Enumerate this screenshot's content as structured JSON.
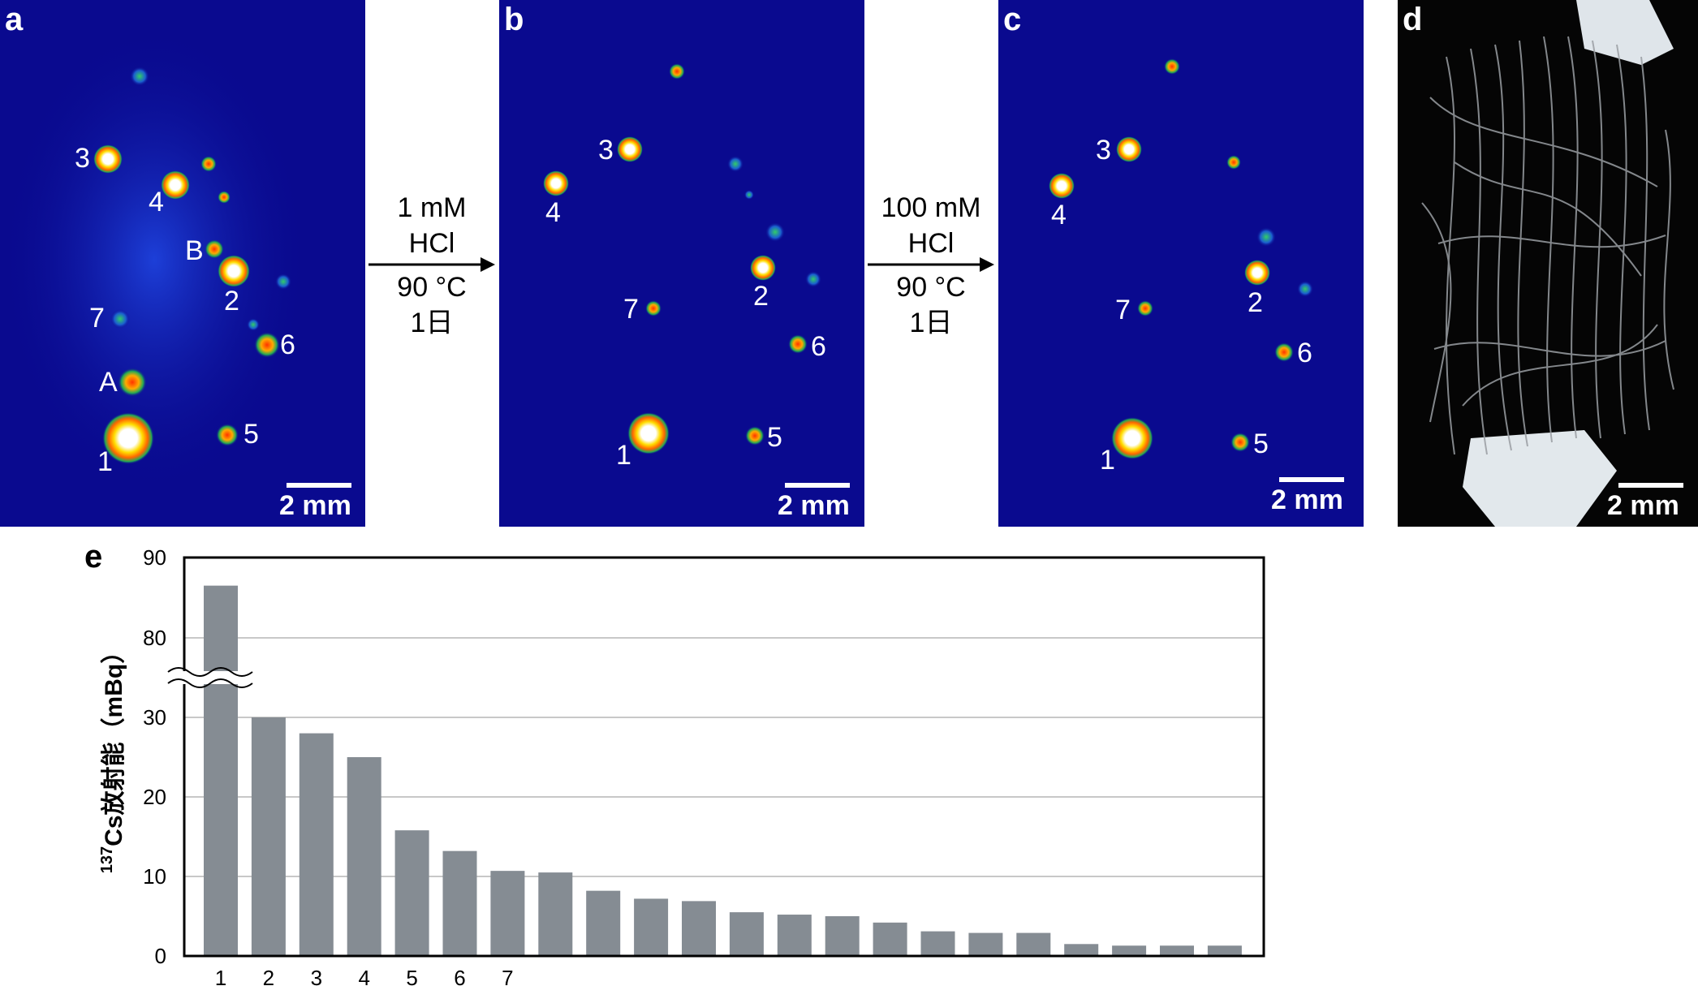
{
  "panels": {
    "a": {
      "letter": "a",
      "scale": "2 mm",
      "spots": [
        {
          "label": "3"
        },
        {
          "label": "4"
        },
        {
          "label": "B"
        },
        {
          "label": "2"
        },
        {
          "label": "7"
        },
        {
          "label": "6"
        },
        {
          "label": "A"
        },
        {
          "label": "1"
        },
        {
          "label": "5"
        }
      ]
    },
    "b": {
      "letter": "b",
      "scale": "2 mm",
      "spots": [
        {
          "label": "3"
        },
        {
          "label": "4"
        },
        {
          "label": "2"
        },
        {
          "label": "7"
        },
        {
          "label": "6"
        },
        {
          "label": "1"
        },
        {
          "label": "5"
        }
      ]
    },
    "c": {
      "letter": "c",
      "scale": "2 mm",
      "spots": [
        {
          "label": "3"
        },
        {
          "label": "4"
        },
        {
          "label": "2"
        },
        {
          "label": "7"
        },
        {
          "label": "6"
        },
        {
          "label": "1"
        },
        {
          "label": "5"
        }
      ]
    },
    "d": {
      "letter": "d",
      "scale": "2 mm"
    }
  },
  "treatments": [
    {
      "line1": "1 mM",
      "line2": "HCl",
      "line3": "90 °C",
      "line4": "1日"
    },
    {
      "line1": "100 mM",
      "line2": "HCl",
      "line3": "90 °C",
      "line4": "1日"
    }
  ],
  "colors": {
    "background_blue": "#0a0a8f",
    "bar": "#858c93",
    "grid": "#c8c8c8"
  },
  "chart_data": {
    "type": "bar",
    "panel_letter": "e",
    "ylabel_sup": "137",
    "ylabel": "Cs放射能（mBq）",
    "broken_axis": true,
    "y_ticks_lower": [
      "0",
      "10",
      "20",
      "30"
    ],
    "y_ticks_upper": [
      "80",
      "90"
    ],
    "categories": [
      "1",
      "2",
      "3",
      "4",
      "5",
      "6",
      "7",
      "",
      "",
      "",
      "",
      "",
      "",
      "",
      "",
      "",
      "",
      "",
      "",
      "",
      "",
      ""
    ],
    "values": [
      86.5,
      30,
      28,
      25,
      15.8,
      13.2,
      10.7,
      10.5,
      8.2,
      7.2,
      6.9,
      5.5,
      5.2,
      5.0,
      4.2,
      3.1,
      2.9,
      2.9,
      1.5,
      1.3,
      1.3,
      1.3
    ],
    "grid": true
  }
}
